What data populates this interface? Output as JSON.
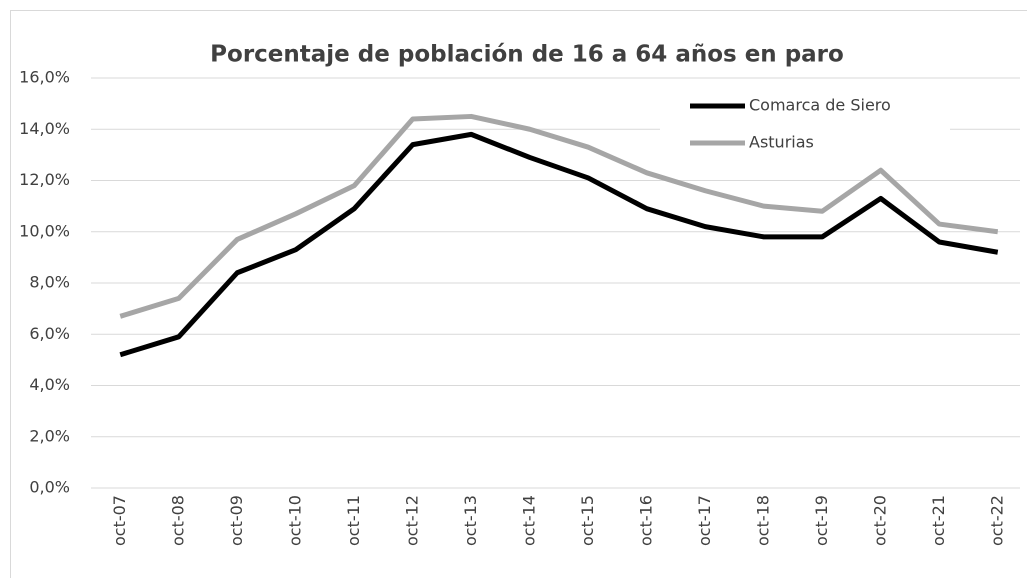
{
  "chart_data": {
    "type": "line",
    "title": "Porcentaje de población de 16 a 64 años en paro",
    "categories": [
      "oct-07",
      "oct-08",
      "oct-09",
      "oct-10",
      "oct-11",
      "oct-12",
      "oct-13",
      "oct-14",
      "oct-15",
      "oct-16",
      "oct-17",
      "oct-18",
      "oct-19",
      "oct-20",
      "oct-21",
      "oct-22"
    ],
    "series": [
      {
        "name": "Comarca de Siero",
        "color": "#000000",
        "values": [
          5.2,
          5.9,
          8.4,
          9.3,
          10.9,
          13.4,
          13.8,
          12.9,
          12.1,
          10.9,
          10.2,
          9.8,
          9.8,
          11.3,
          9.6,
          9.2
        ]
      },
      {
        "name": "Asturias",
        "color": "#a6a6a6",
        "values": [
          6.7,
          7.4,
          9.7,
          10.7,
          11.8,
          14.4,
          14.5,
          14.0,
          13.3,
          12.3,
          11.6,
          11.0,
          10.8,
          12.4,
          10.3,
          10.0
        ]
      }
    ],
    "ylim": [
      0,
      16
    ],
    "yticks": [
      {
        "value": 0,
        "label": "0,0%"
      },
      {
        "value": 2,
        "label": "2,0%"
      },
      {
        "value": 4,
        "label": "4,0%"
      },
      {
        "value": 6,
        "label": "6,0%"
      },
      {
        "value": 8,
        "label": "8,0%"
      },
      {
        "value": 10,
        "label": "10,0%"
      },
      {
        "value": 12,
        "label": "12,0%"
      },
      {
        "value": 14,
        "label": "14,0%"
      },
      {
        "value": 16,
        "label": "16,0%"
      }
    ],
    "grid": true,
    "legend": "upper right"
  }
}
